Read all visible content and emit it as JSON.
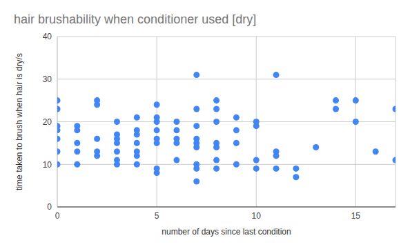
{
  "chart_data": {
    "type": "scatter",
    "title": "hair brushability when conditioner used [dry]",
    "x_label": "number of days since last condition",
    "y_label": "time taken to brush when hair is dry/s",
    "x": [
      0,
      0,
      0,
      0,
      0,
      0,
      0,
      1,
      1,
      1,
      1,
      1,
      2,
      2,
      2,
      2,
      2,
      3,
      3,
      3,
      3,
      3,
      3,
      3,
      4,
      4,
      4,
      4,
      4,
      4,
      4,
      5,
      5,
      5,
      5,
      5,
      5,
      5,
      5,
      6,
      6,
      6,
      6,
      6,
      7,
      7,
      7,
      7,
      7,
      7,
      7,
      7,
      7,
      8,
      8,
      8,
      8,
      8,
      8,
      8,
      9,
      9,
      9,
      9,
      10,
      10,
      10,
      10,
      11,
      11,
      11,
      11,
      12,
      12,
      13,
      14,
      14,
      15,
      15,
      16,
      17,
      17
    ],
    "values": [
      25,
      23,
      19,
      18,
      16,
      13,
      10,
      19,
      18,
      15,
      13,
      10,
      25,
      24,
      16,
      13,
      12,
      20,
      17,
      16,
      15,
      13,
      11,
      10,
      21,
      18,
      17,
      15,
      13,
      12,
      10,
      24,
      21,
      20,
      18,
      16,
      15,
      9,
      8,
      20,
      18,
      16,
      15,
      11,
      31,
      23,
      19,
      16,
      15,
      14,
      10,
      9,
      6,
      25,
      23,
      20,
      15,
      14,
      11,
      9,
      21,
      18,
      15,
      10,
      20,
      19,
      11,
      9,
      31,
      13,
      12,
      9,
      9,
      7,
      14,
      25,
      23,
      25,
      20,
      13,
      23,
      11
    ],
    "color": "#4285f4",
    "xlim": [
      0,
      17
    ],
    "ylim": [
      0,
      40
    ],
    "xticks": [
      0,
      5,
      10,
      15
    ],
    "yticks": [
      0,
      10,
      20,
      30,
      40
    ],
    "grid": true
  }
}
